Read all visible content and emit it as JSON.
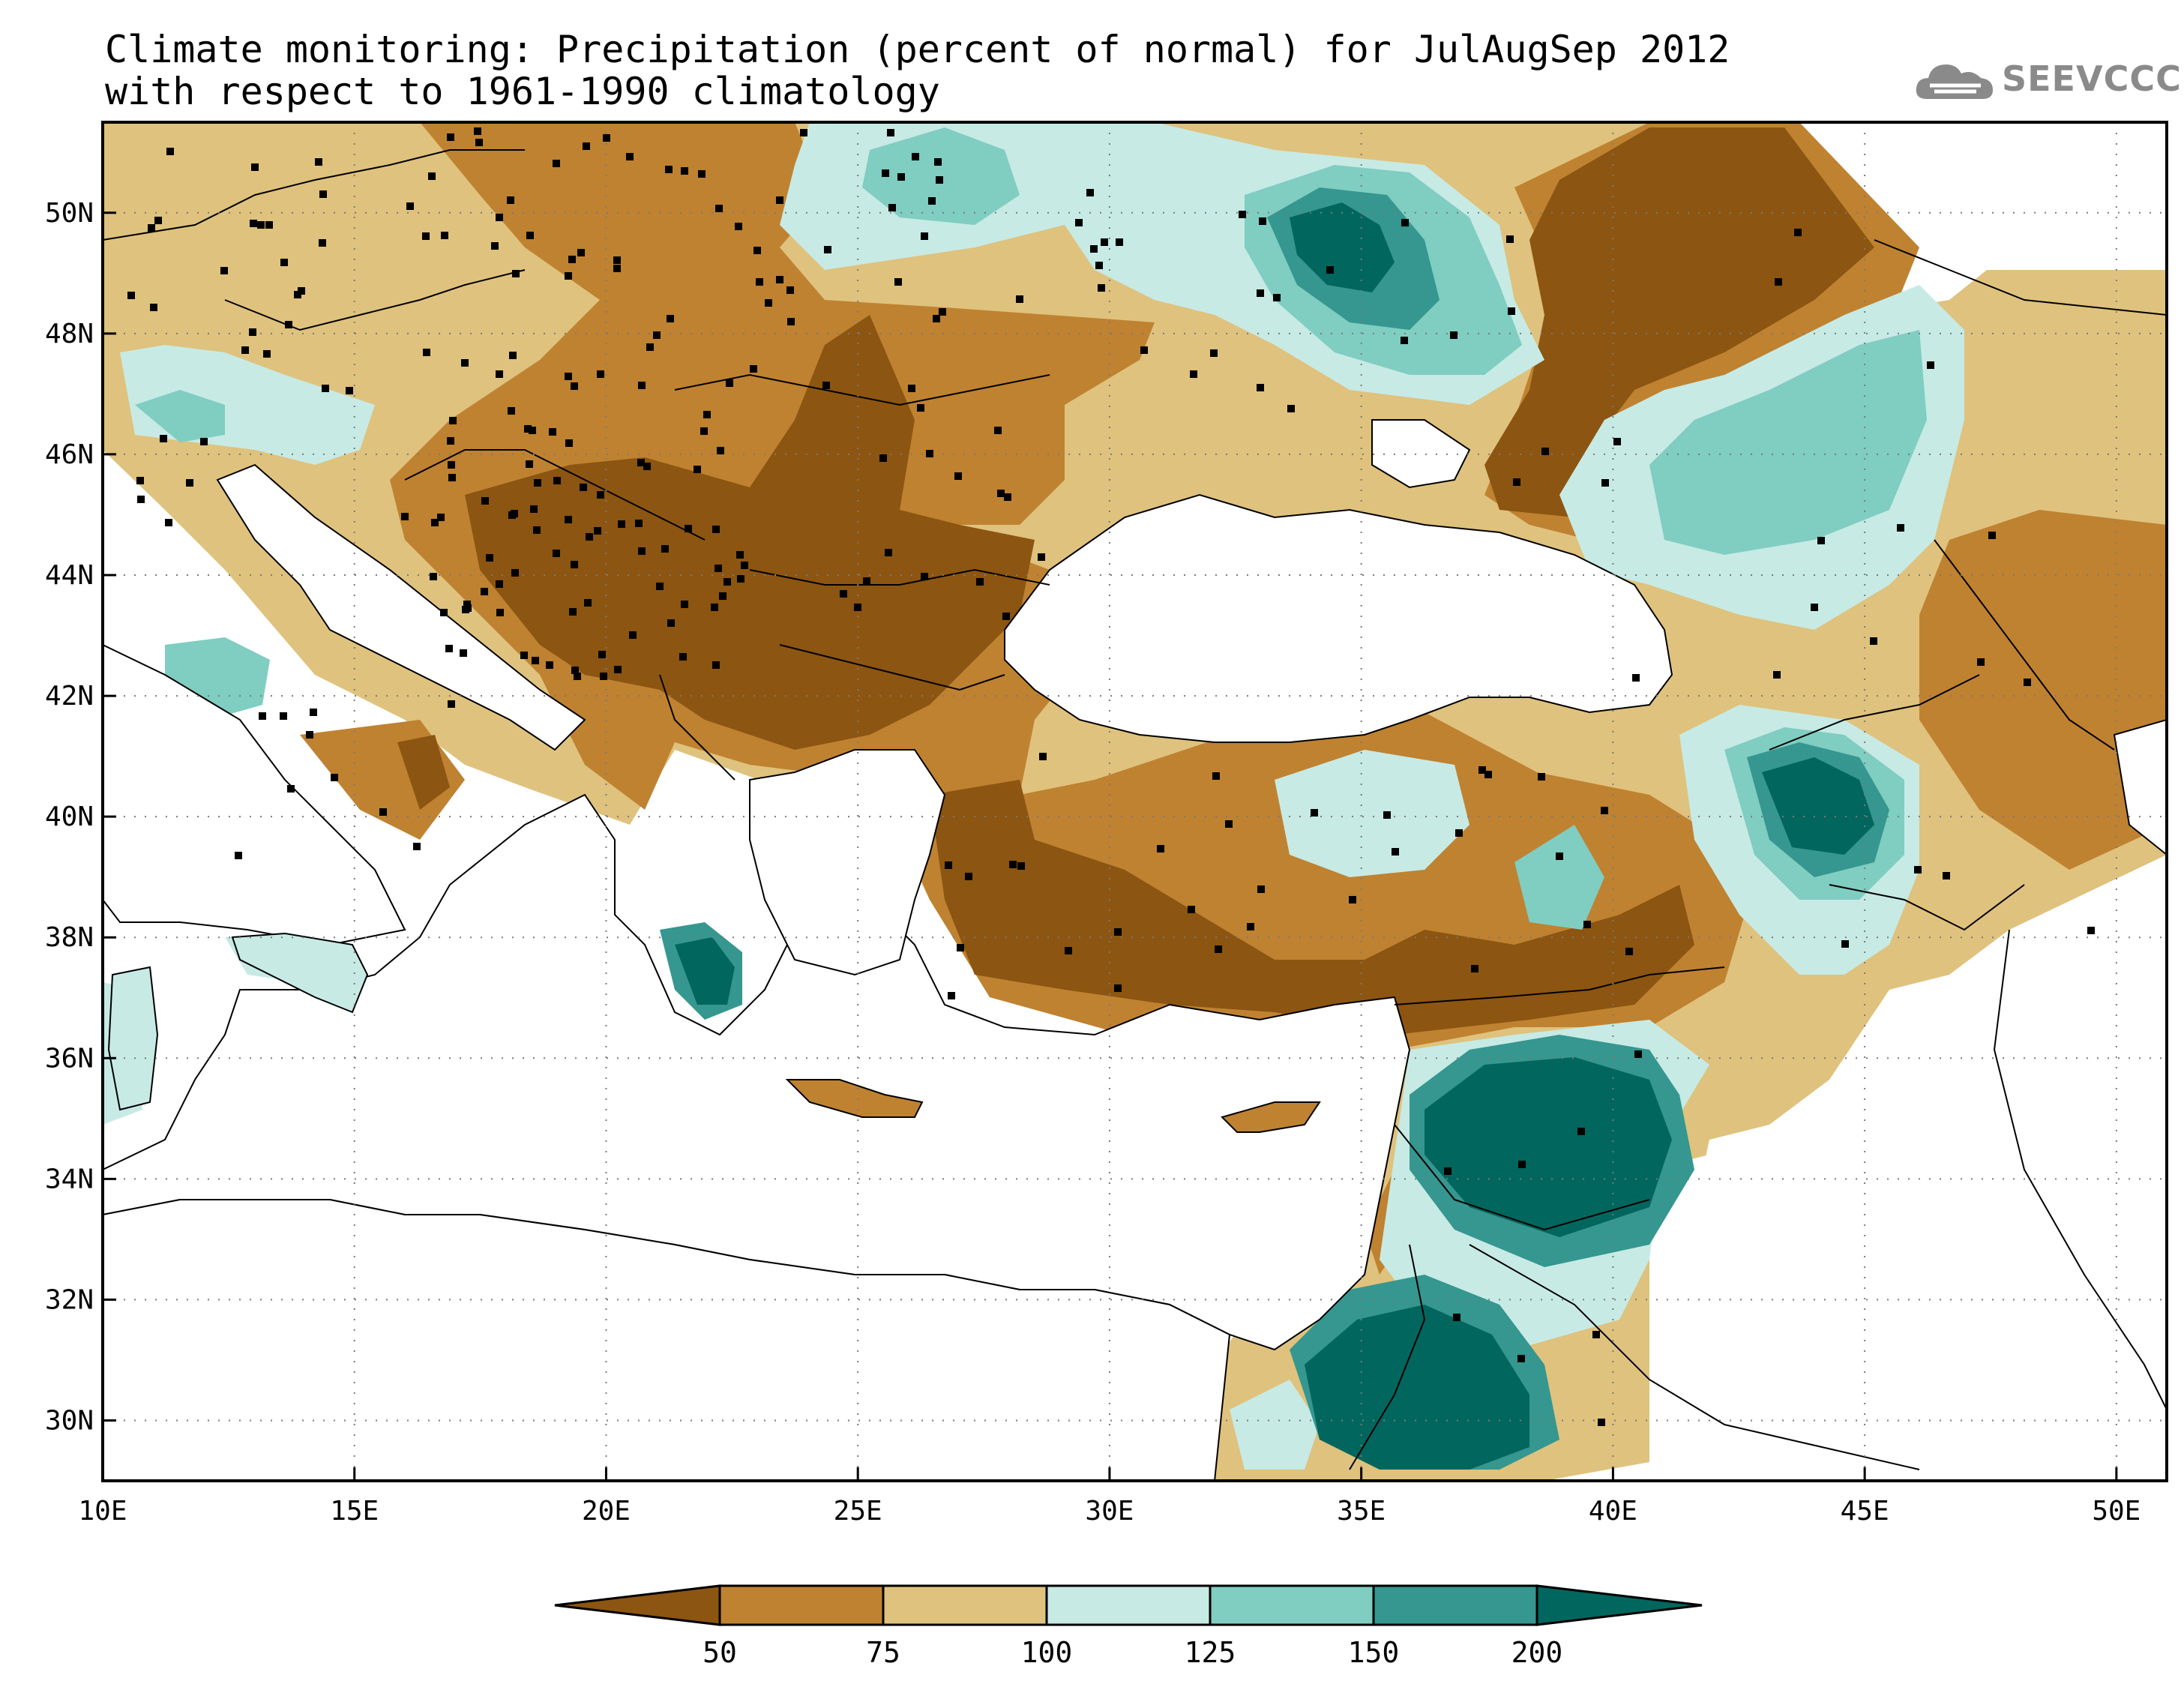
{
  "title": {
    "line1": "Climate monitoring: Precipitation (percent of normal) for JulAugSep 2012",
    "line2": "with respect to 1961-1990 climatology"
  },
  "logo": {
    "text": "SEEVCCC",
    "icon": "cloud-logo-icon"
  },
  "map": {
    "lat_ticks": [
      "50N",
      "48N",
      "46N",
      "44N",
      "42N",
      "40N",
      "38N",
      "36N",
      "34N",
      "32N",
      "30N"
    ],
    "lon_ticks": [
      "10E",
      "15E",
      "20E",
      "25E",
      "30E",
      "35E",
      "40E",
      "45E",
      "50E"
    ],
    "lat_range": [
      29,
      51.5
    ],
    "lon_range": [
      10,
      51
    ],
    "grid": "dotted"
  },
  "legend": {
    "labels": [
      "50",
      "75",
      "100",
      "125",
      "150",
      "200"
    ],
    "colors": [
      "#8c5511",
      "#bf8231",
      "#dfc27d",
      "#c7eae5",
      "#80cdc1",
      "#35978f",
      "#01665e"
    ]
  },
  "colors": {
    "c_lt50": "#8c5511",
    "c_50_75": "#bf8231",
    "c_75_100": "#dfc27d",
    "c_100_125": "#c7eae5",
    "c_125_150": "#80cdc1",
    "c_150_200": "#35978f",
    "c_gt200": "#01665e"
  }
}
